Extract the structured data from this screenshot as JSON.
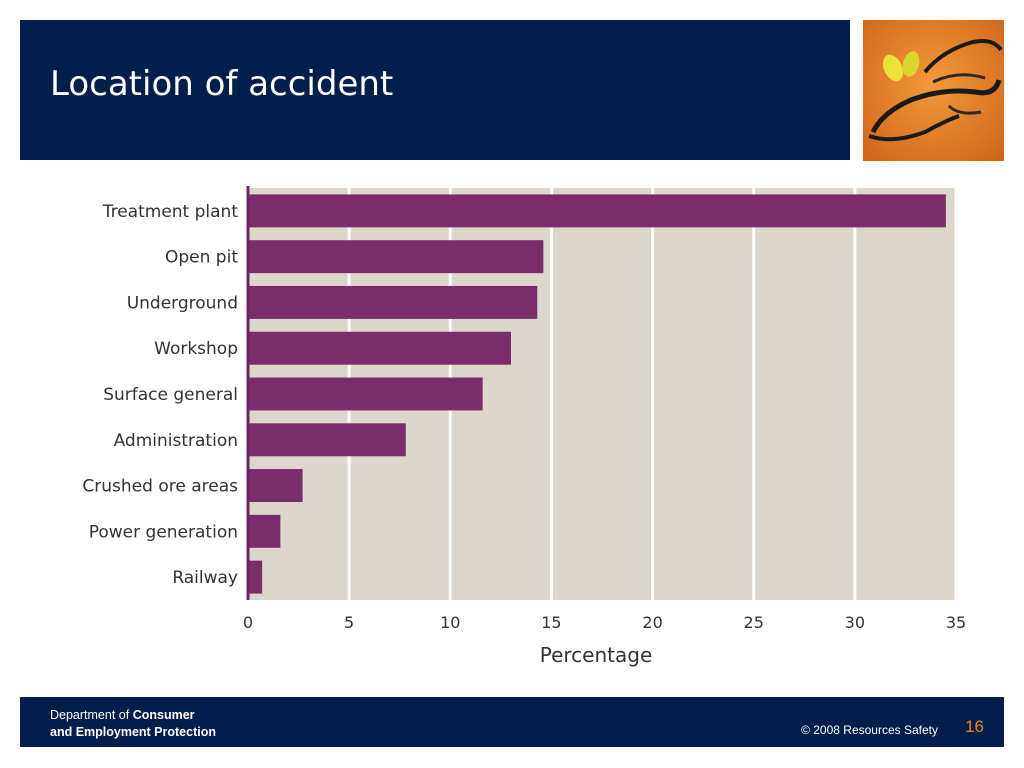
{
  "slide": {
    "title": "Location of accident"
  },
  "footer": {
    "dept_line1_prefix": "Department of ",
    "dept_line1_bold": "Consumer",
    "dept_line2": "and Employment Protection",
    "copyright": "© 2008 Resources Safety",
    "page_number": "16"
  },
  "photo": {
    "icon": "safety-glasses-and-earplugs-photo"
  },
  "chart_data": {
    "type": "bar",
    "orientation": "horizontal",
    "categories": [
      "Treatment plant",
      "Open pit",
      "Underground",
      "Workshop",
      "Surface general",
      "Administration",
      "Crushed ore areas",
      "Power generation",
      "Railway"
    ],
    "values": [
      34.5,
      14.6,
      14.3,
      13.0,
      11.6,
      7.8,
      2.7,
      1.6,
      0.7
    ],
    "xlabel": "Percentage",
    "ylabel": "",
    "xlim": [
      0,
      35
    ],
    "xticks": [
      0,
      5,
      10,
      15,
      20,
      25,
      30,
      35
    ],
    "grid": true,
    "bar_color": "#7a2c6b",
    "plot_background": "#dcd6cc"
  }
}
